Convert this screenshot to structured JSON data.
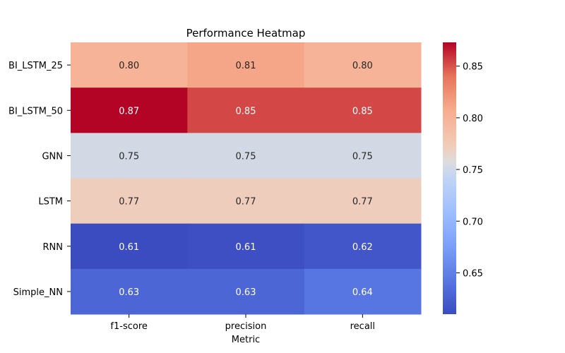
{
  "chart_data": {
    "type": "heatmap",
    "title": "Performance Heatmap",
    "xlabel": "Metric",
    "ylabel": "",
    "columns": [
      "f1-score",
      "precision",
      "recall"
    ],
    "rows": [
      "BI_LSTM_25",
      "BI_LSTM_50",
      "GNN",
      "LSTM",
      "RNN",
      "Simple_NN"
    ],
    "values": [
      [
        0.8,
        0.811,
        0.8
      ],
      [
        0.873,
        0.853,
        0.853
      ],
      [
        0.752,
        0.752,
        0.752
      ],
      [
        0.772,
        0.772,
        0.772
      ],
      [
        0.61,
        0.612,
        0.618
      ],
      [
        0.63,
        0.63,
        0.642
      ]
    ],
    "value_labels": [
      [
        "0.80",
        "0.81",
        "0.80"
      ],
      [
        "0.87",
        "0.85",
        "0.85"
      ],
      [
        "0.75",
        "0.75",
        "0.75"
      ],
      [
        "0.77",
        "0.77",
        "0.77"
      ],
      [
        "0.61",
        "0.61",
        "0.62"
      ],
      [
        "0.63",
        "0.63",
        "0.64"
      ]
    ],
    "colormap": "coolwarm",
    "color_range": [
      0.61,
      0.873
    ],
    "colorbar_ticks": [
      0.65,
      0.7,
      0.75,
      0.8,
      0.85
    ],
    "colorbar_tick_labels": [
      "0.65",
      "0.70",
      "0.75",
      "0.80",
      "0.85"
    ]
  }
}
